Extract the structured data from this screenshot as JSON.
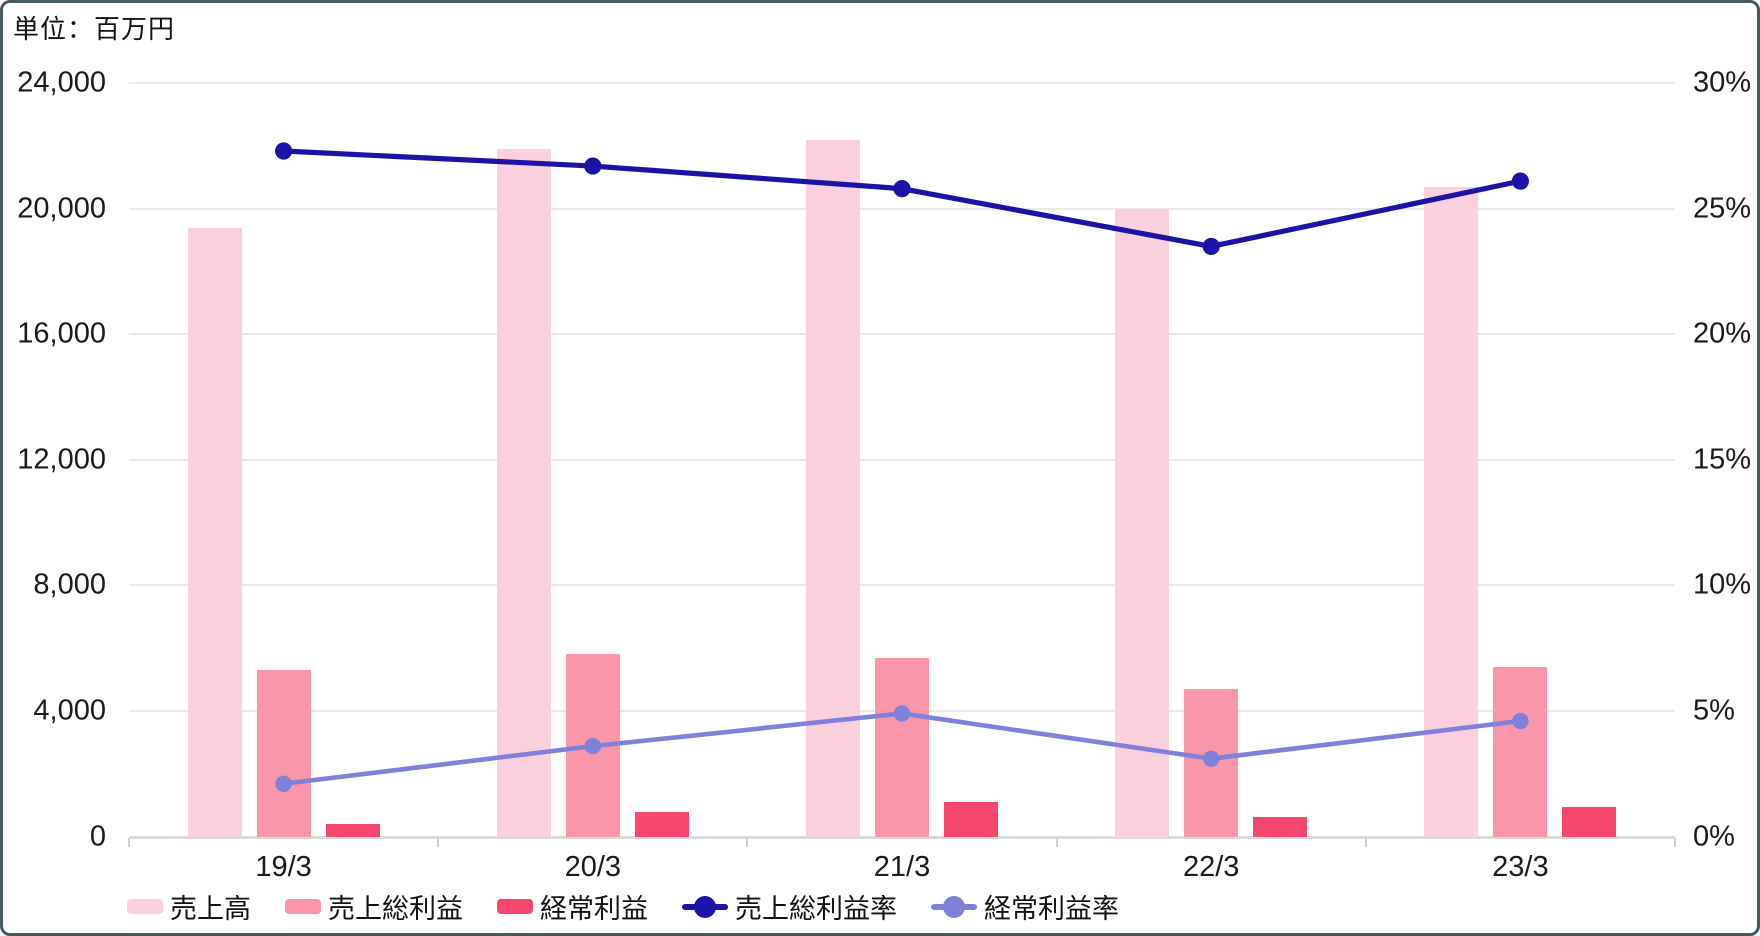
{
  "title": "単位：百万円",
  "colors": {
    "background": "#ffffff",
    "frame_border": "#47595f",
    "grid": "#e9e9e9",
    "baseline": "#d9d9d9",
    "text": "#111111",
    "bar_sales": "#fbd0dd",
    "bar_gross_profit": "#f996aa",
    "bar_ordinary_income": "#f4476e",
    "line_gross_margin": "#1c13a6",
    "line_ordinary_margin": "#7f81d8"
  },
  "chart_data": {
    "type": "combo-bar-line",
    "unit_note": "単位：百万円",
    "categories": [
      "19/3",
      "20/3",
      "21/3",
      "22/3",
      "23/3"
    ],
    "series": [
      {
        "name": "売上高",
        "type": "bar",
        "axis": "left",
        "color": "#fbd0dd",
        "values": [
          19400,
          21900,
          22200,
          20000,
          20700
        ]
      },
      {
        "name": "売上総利益",
        "type": "bar",
        "axis": "left",
        "color": "#f996aa",
        "values": [
          5300,
          5800,
          5700,
          4700,
          5400
        ]
      },
      {
        "name": "経常利益",
        "type": "bar",
        "axis": "left",
        "color": "#f4476e",
        "values": [
          400,
          780,
          1100,
          620,
          950
        ]
      },
      {
        "name": "売上総利益率",
        "type": "line",
        "axis": "right",
        "color": "#1c13a6",
        "values": [
          27.3,
          26.7,
          25.8,
          23.5,
          26.1
        ]
      },
      {
        "name": "経常利益率",
        "type": "line",
        "axis": "right",
        "color": "#7f81d8",
        "values": [
          2.1,
          3.6,
          4.9,
          3.1,
          4.6
        ]
      }
    ],
    "left_axis": {
      "min": 0,
      "max": 24000,
      "tick_step": 4000,
      "tick_labels": [
        "0",
        "4,000",
        "8,000",
        "12,000",
        "16,000",
        "20,000",
        "24,000"
      ]
    },
    "right_axis": {
      "min": 0,
      "max": 30,
      "tick_step": 5,
      "tick_labels": [
        "0%",
        "5%",
        "10%",
        "15%",
        "20%",
        "25%",
        "30%"
      ]
    },
    "grid": true,
    "legend_position": "bottom-left"
  }
}
